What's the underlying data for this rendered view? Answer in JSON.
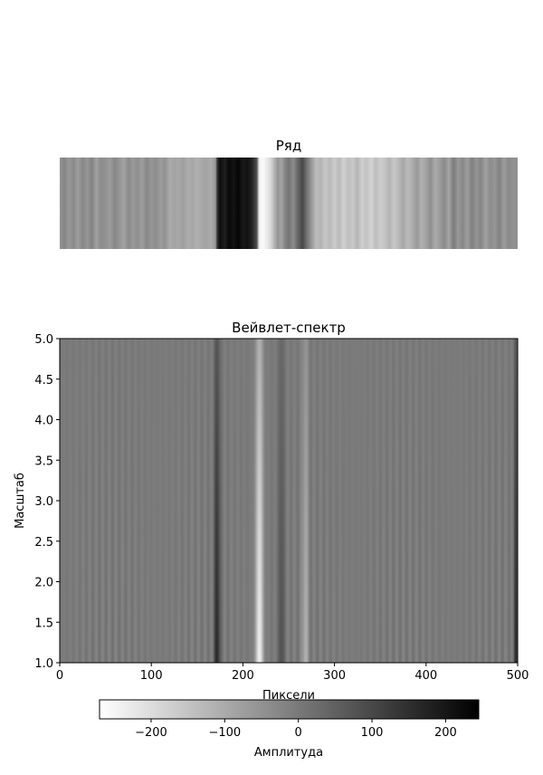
{
  "chart_data": [
    {
      "type": "heatmap",
      "title": "Ряд",
      "xlim": [
        0,
        500
      ],
      "axes_visible": false,
      "colormap": "gray_r",
      "intensity_profile": [
        [
          0,
          0.42
        ],
        [
          5,
          0.48
        ],
        [
          10,
          0.4
        ],
        [
          15,
          0.46
        ],
        [
          20,
          0.38
        ],
        [
          25,
          0.47
        ],
        [
          30,
          0.41
        ],
        [
          35,
          0.49
        ],
        [
          40,
          0.37
        ],
        [
          45,
          0.45
        ],
        [
          50,
          0.43
        ],
        [
          55,
          0.39
        ],
        [
          60,
          0.47
        ],
        [
          65,
          0.42
        ],
        [
          70,
          0.36
        ],
        [
          75,
          0.46
        ],
        [
          80,
          0.4
        ],
        [
          85,
          0.44
        ],
        [
          90,
          0.38
        ],
        [
          95,
          0.47
        ],
        [
          100,
          0.41
        ],
        [
          105,
          0.45
        ],
        [
          110,
          0.39
        ],
        [
          115,
          0.43
        ],
        [
          120,
          0.33
        ],
        [
          125,
          0.36
        ],
        [
          130,
          0.34
        ],
        [
          135,
          0.38
        ],
        [
          140,
          0.32
        ],
        [
          145,
          0.35
        ],
        [
          150,
          0.31
        ],
        [
          155,
          0.34
        ],
        [
          160,
          0.36
        ],
        [
          165,
          0.33
        ],
        [
          170,
          0.4
        ],
        [
          172,
          0.8
        ],
        [
          175,
          0.95
        ],
        [
          180,
          0.88
        ],
        [
          185,
          0.97
        ],
        [
          190,
          0.92
        ],
        [
          195,
          0.98
        ],
        [
          200,
          0.9
        ],
        [
          205,
          0.93
        ],
        [
          210,
          0.86
        ],
        [
          215,
          0.7
        ],
        [
          218,
          0.05
        ],
        [
          222,
          0.02
        ],
        [
          226,
          0.08
        ],
        [
          230,
          0.15
        ],
        [
          234,
          0.28
        ],
        [
          238,
          0.42
        ],
        [
          242,
          0.36
        ],
        [
          246,
          0.48
        ],
        [
          250,
          0.55
        ],
        [
          255,
          0.45
        ],
        [
          260,
          0.6
        ],
        [
          265,
          0.72
        ],
        [
          270,
          0.55
        ],
        [
          275,
          0.4
        ],
        [
          280,
          0.26
        ],
        [
          285,
          0.3
        ],
        [
          290,
          0.22
        ],
        [
          295,
          0.28
        ],
        [
          300,
          0.2
        ],
        [
          305,
          0.27
        ],
        [
          310,
          0.18
        ],
        [
          315,
          0.25
        ],
        [
          320,
          0.21
        ],
        [
          325,
          0.29
        ],
        [
          330,
          0.19
        ],
        [
          335,
          0.24
        ],
        [
          340,
          0.17
        ],
        [
          345,
          0.26
        ],
        [
          350,
          0.2
        ],
        [
          355,
          0.23
        ],
        [
          360,
          0.3
        ],
        [
          365,
          0.22
        ],
        [
          370,
          0.28
        ],
        [
          375,
          0.35
        ],
        [
          380,
          0.27
        ],
        [
          385,
          0.32
        ],
        [
          390,
          0.4
        ],
        [
          395,
          0.31
        ],
        [
          400,
          0.36
        ],
        [
          405,
          0.44
        ],
        [
          410,
          0.33
        ],
        [
          415,
          0.39
        ],
        [
          420,
          0.46
        ],
        [
          425,
          0.35
        ],
        [
          430,
          0.52
        ],
        [
          435,
          0.4
        ],
        [
          440,
          0.47
        ],
        [
          445,
          0.38
        ],
        [
          450,
          0.5
        ],
        [
          455,
          0.42
        ],
        [
          460,
          0.48
        ],
        [
          465,
          0.37
        ],
        [
          470,
          0.45
        ],
        [
          475,
          0.41
        ],
        [
          480,
          0.49
        ],
        [
          485,
          0.39
        ],
        [
          490,
          0.46
        ],
        [
          495,
          0.43
        ],
        [
          500,
          0.44
        ]
      ]
    },
    {
      "type": "heatmap",
      "title": "Вейвлет-спектр",
      "xlabel": "Пиксели",
      "ylabel": "Масштаб",
      "xlim": [
        0,
        500
      ],
      "ylim": [
        1.0,
        5.0
      ],
      "xticks": [
        "0",
        "100",
        "200",
        "300",
        "400",
        "500"
      ],
      "yticks": [
        "1.0",
        "1.5",
        "2.0",
        "2.5",
        "3.0",
        "3.5",
        "4.0",
        "4.5",
        "5.0"
      ],
      "colormap": "gray_r",
      "colorbar": {
        "label": "Амплитуда",
        "range": [
          -270,
          245
        ],
        "ticks": [
          "−200",
          "−100",
          "0",
          "100",
          "200"
        ],
        "tick_values": [
          -200,
          -100,
          0,
          100,
          200
        ],
        "orientation": "horizontal",
        "placement": "bottom"
      },
      "features": [
        {
          "x": 172,
          "sign": "positive",
          "strength": 0.9,
          "width": 3
        },
        {
          "x": 218,
          "sign": "negative",
          "strength": 1.0,
          "width": 4
        },
        {
          "x": 242,
          "sign": "positive",
          "strength": 0.5,
          "width": 3
        },
        {
          "x": 268,
          "sign": "negative",
          "strength": 0.5,
          "width": 3
        },
        {
          "x": 498,
          "sign": "positive",
          "strength": 0.8,
          "width": 2
        }
      ]
    }
  ]
}
